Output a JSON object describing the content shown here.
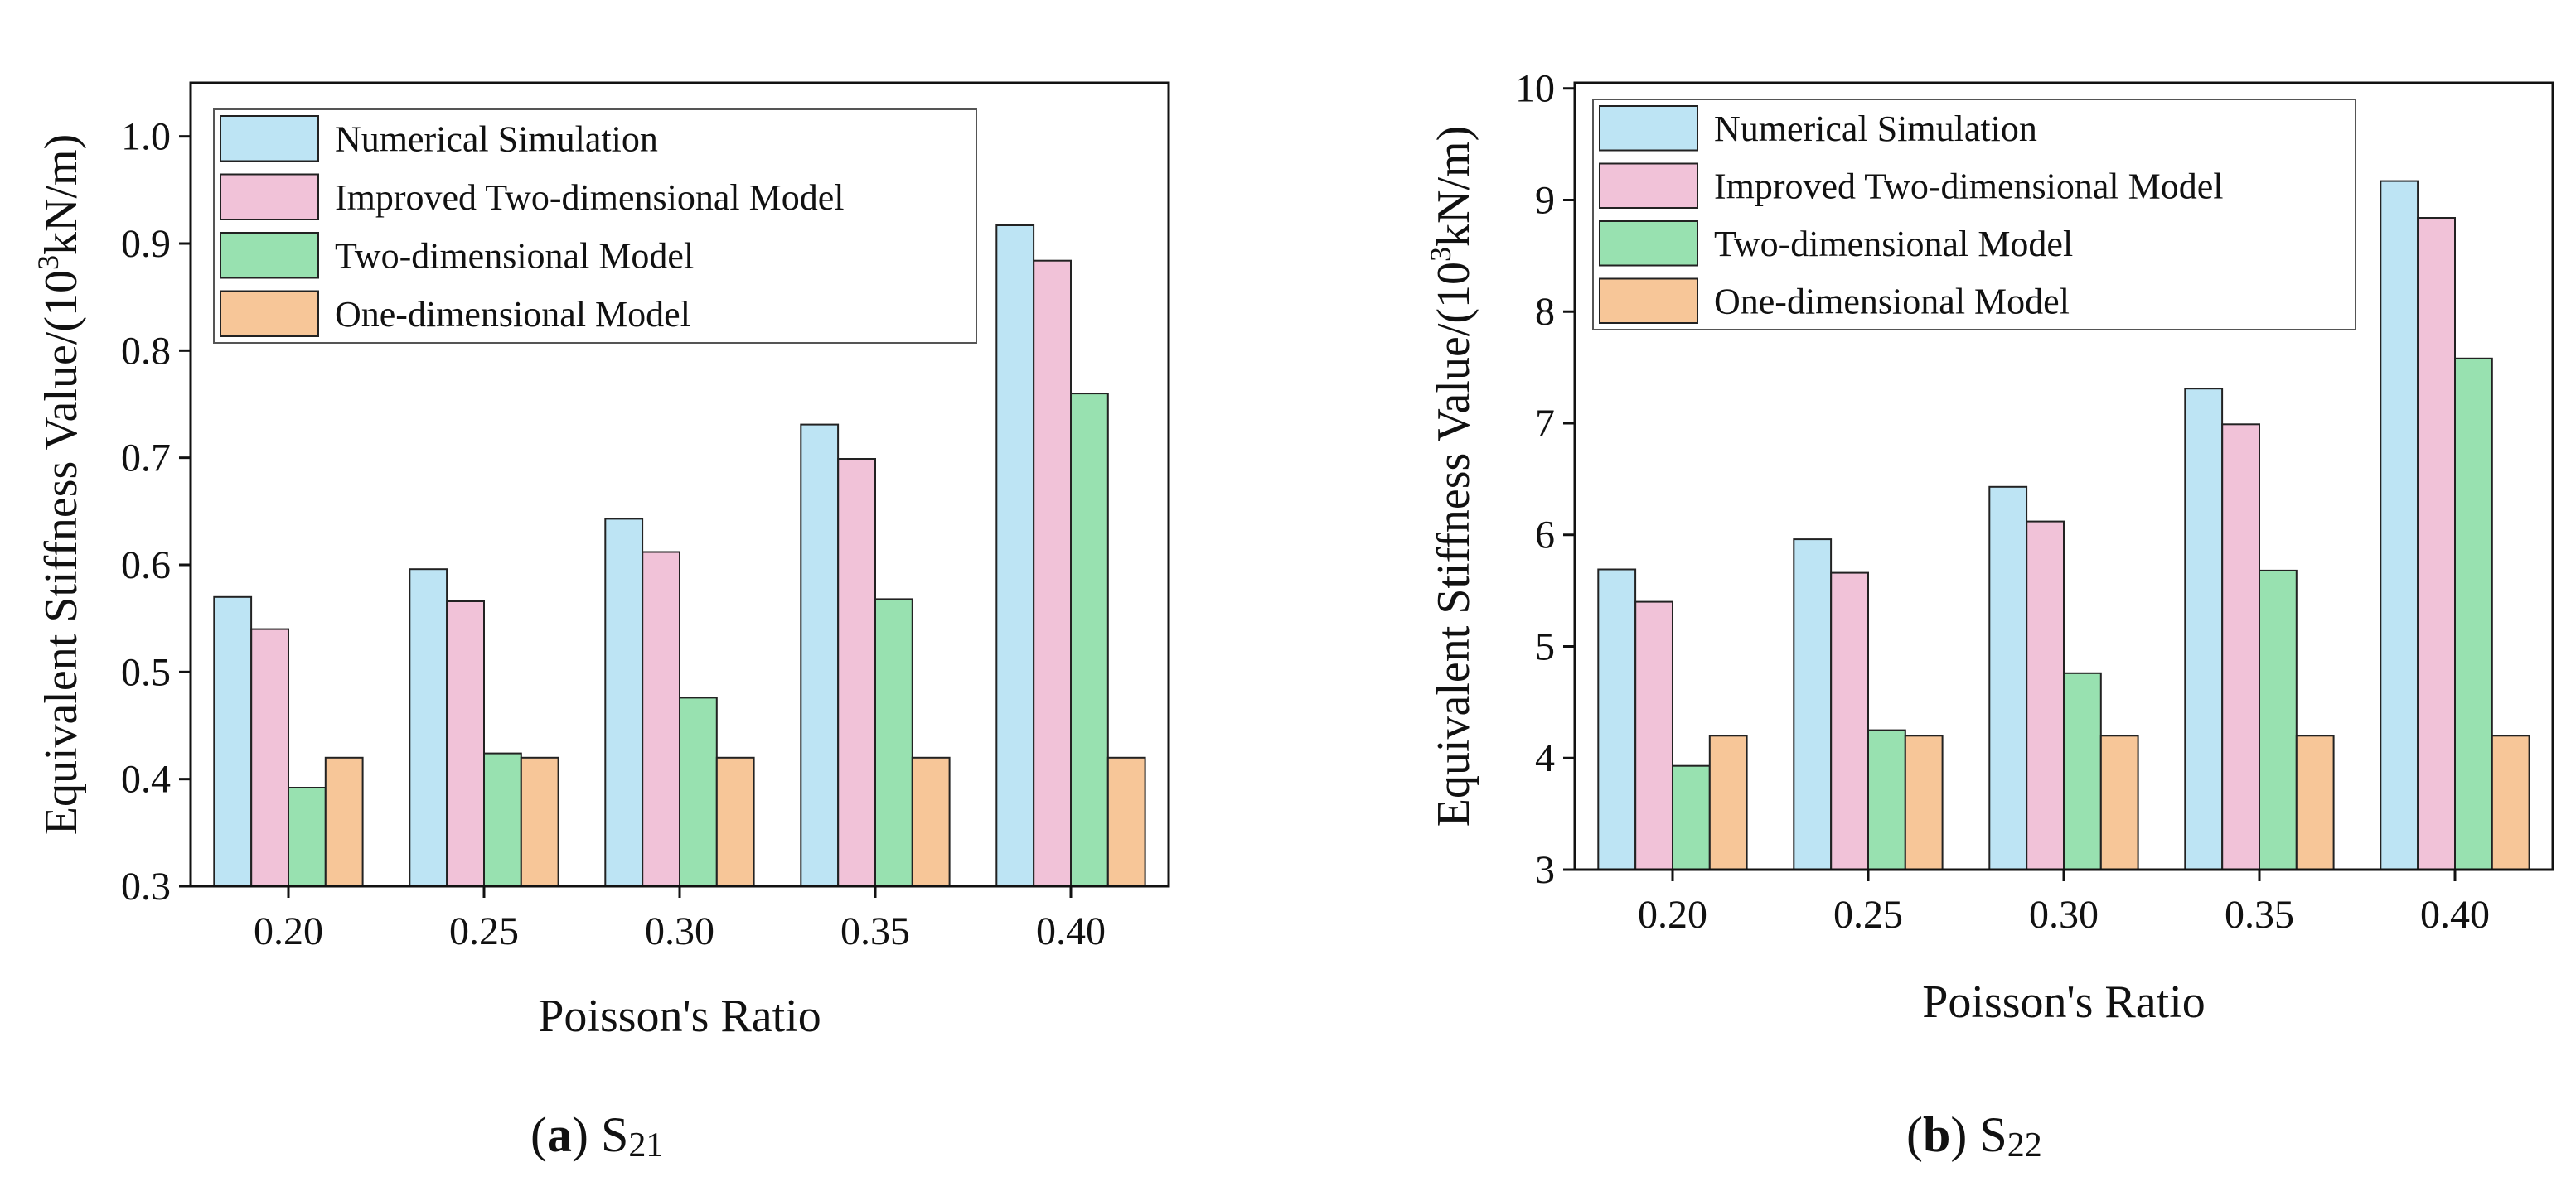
{
  "figure": {
    "series_colors": [
      "#bde4f4",
      "#f1c2d8",
      "#98e1b0",
      "#f7c698"
    ],
    "edge_color": "#222222"
  },
  "chart_data": [
    {
      "type": "bar",
      "panel": "a",
      "caption": {
        "letter": "(a)",
        "base": "S",
        "sub": "21"
      },
      "xlabel": "Poisson's Ratio",
      "ylabel": {
        "prefix": "Equivalent Stiffness Value/(10",
        "sup": "3",
        "suffix": "kN/m)"
      },
      "categories": [
        "0.20",
        "0.25",
        "0.30",
        "0.35",
        "0.40"
      ],
      "ylim": [
        0.3,
        1.05
      ],
      "yticks": [
        "0.3",
        "0.4",
        "0.5",
        "0.6",
        "0.7",
        "0.8",
        "0.9",
        "1.0"
      ],
      "yticks_values": [
        0.3,
        0.4,
        0.5,
        0.6,
        0.7,
        0.8,
        0.9,
        1.0
      ],
      "legend_position": "top-left",
      "series": [
        {
          "name": "Numerical Simulation",
          "values": [
            0.57,
            0.596,
            0.643,
            0.731,
            0.917
          ]
        },
        {
          "name": "Improved Two-dimensional Model",
          "values": [
            0.54,
            0.566,
            0.612,
            0.699,
            0.884
          ]
        },
        {
          "name": "Two-dimensional Model",
          "values": [
            0.392,
            0.424,
            0.476,
            0.568,
            0.76
          ]
        },
        {
          "name": "One-dimensional Model",
          "values": [
            0.42,
            0.42,
            0.42,
            0.42,
            0.42
          ]
        }
      ]
    },
    {
      "type": "bar",
      "panel": "b",
      "caption": {
        "letter": "(b)",
        "base": "S",
        "sub": "22"
      },
      "xlabel": "Poisson's Ratio",
      "ylabel": {
        "prefix": "Equivalent Stiffness Value/(10",
        "sup": "3",
        "suffix": "kN/m)"
      },
      "categories": [
        "0.20",
        "0.25",
        "0.30",
        "0.35",
        "0.40"
      ],
      "ylim": [
        3,
        10.05
      ],
      "yticks": [
        "3",
        "4",
        "5",
        "6",
        "7",
        "8",
        "9",
        "10"
      ],
      "yticks_values": [
        3,
        4,
        5,
        6,
        7,
        8,
        9,
        10
      ],
      "legend_position": "top-left",
      "series": [
        {
          "name": "Numerical Simulation",
          "values": [
            5.69,
            5.96,
            6.43,
            7.31,
            9.17
          ]
        },
        {
          "name": "Improved Two-dimensional Model",
          "values": [
            5.4,
            5.66,
            6.12,
            6.99,
            8.84
          ]
        },
        {
          "name": "Two-dimensional Model",
          "values": [
            3.93,
            4.25,
            4.76,
            5.68,
            7.58
          ]
        },
        {
          "name": "One-dimensional Model",
          "values": [
            4.2,
            4.2,
            4.2,
            4.2,
            4.2
          ]
        }
      ]
    }
  ]
}
